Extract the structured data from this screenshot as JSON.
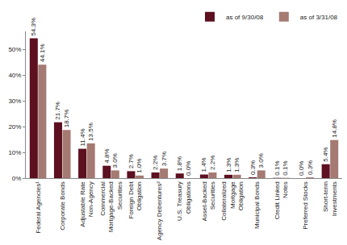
{
  "chart_data": {
    "type": "bar",
    "categories": [
      "Federal Agencies¹",
      "Corporate Bonds",
      "Adjustable Rate Non-Agency",
      "Commercial Mortgage-Backed Securities",
      "Foreign Debt Obligation",
      "Agency Debentures²",
      "U.S. Treasury Obligations",
      "Asset-Backed Securities",
      "Collateralized Mortgage Obligation",
      "Municipal Bonds",
      "Credit Linked Notes",
      "Preferred Stocks",
      "Short-term Investments"
    ],
    "series": [
      {
        "name": "as of 9/30/08",
        "color": "#5c1020",
        "values": [
          54.3,
          21.7,
          11.4,
          4.8,
          2.7,
          2.2,
          1.8,
          1.4,
          1.3,
          0.3,
          0.1,
          0.0,
          5.4
        ],
        "value_labels": [
          "54.3%",
          "21.7%",
          "11.4%",
          "4.8%",
          "2.7%",
          "2.2%",
          "1.8%",
          "1.4%",
          "1.3%",
          "0.3%",
          "0.1%",
          "0.0%",
          "5.4%"
        ]
      },
      {
        "name": "as of 3/31/08",
        "color": "#a47a72",
        "values": [
          44.1,
          18.7,
          13.5,
          3.0,
          1.0,
          3.7,
          0.0,
          2.2,
          1.3,
          3.0,
          0.1,
          0.3,
          14.8
        ],
        "value_labels": [
          "44.1%",
          "18.7%",
          "13.5%",
          "3.0%",
          "1.0%",
          "3.7%",
          "0.0%",
          "2.2%",
          "1.3%",
          "3.0%",
          "0.1%",
          "0.3%",
          "14.8%"
        ]
      }
    ],
    "ylim": [
      0,
      57
    ],
    "yticks": [
      {
        "value": 0,
        "label": "0%"
      },
      {
        "value": 10,
        "label": "10%"
      },
      {
        "value": 20,
        "label": "20%"
      },
      {
        "value": 30,
        "label": "30%"
      },
      {
        "value": 40,
        "label": "40%"
      },
      {
        "value": 50,
        "label": "50%"
      }
    ],
    "grid": false,
    "legend": "top-right",
    "data_labels": true
  }
}
